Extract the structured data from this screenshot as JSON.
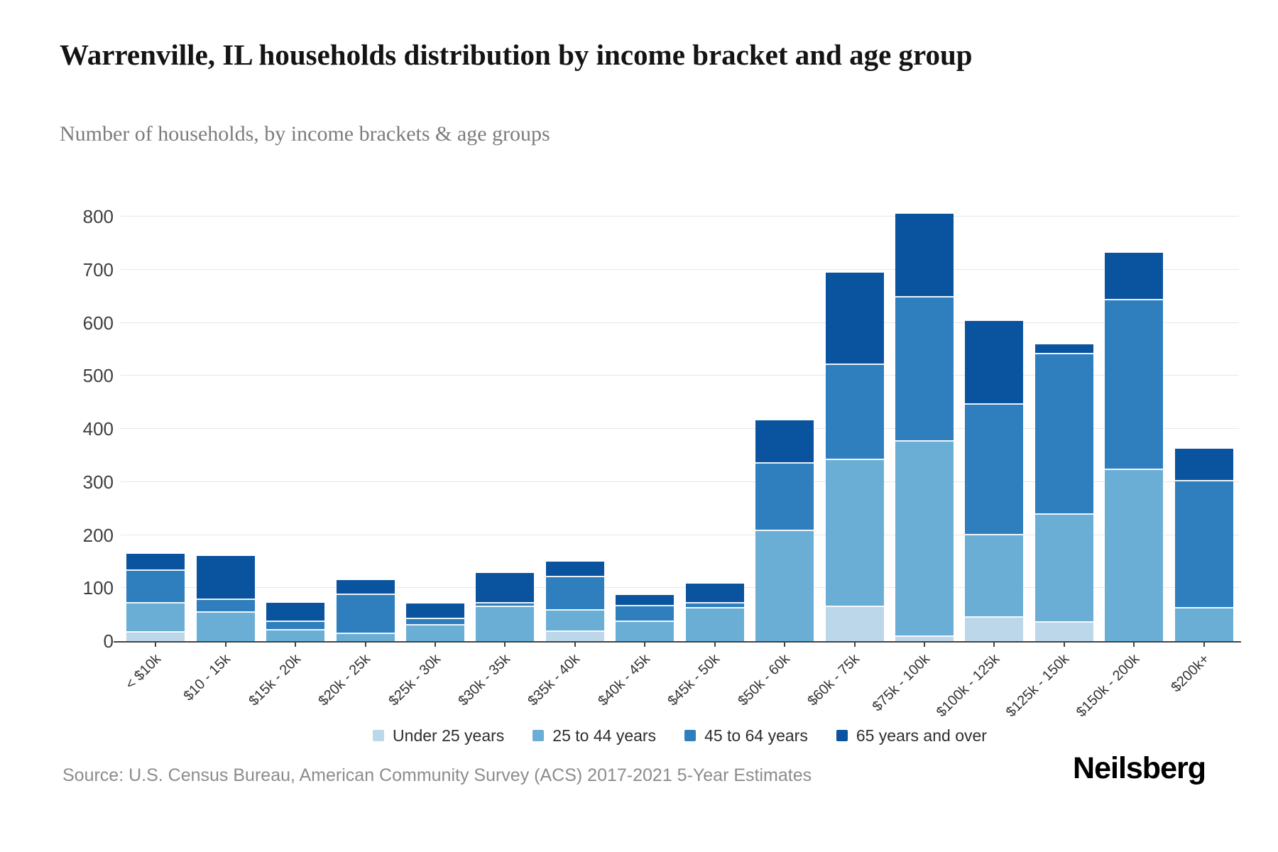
{
  "header": {
    "title": "Warrenville, IL households distribution by income bracket and age group",
    "subtitle": "Number of households, by income brackets & age groups"
  },
  "chart_data": {
    "type": "bar",
    "stacked": true,
    "title": "Warrenville, IL households distribution by income bracket and age group",
    "subtitle": "Number of households, by income brackets & age groups",
    "xlabel": "",
    "ylabel": "",
    "ylim": [
      0,
      800
    ],
    "yticks": [
      0,
      100,
      200,
      300,
      400,
      500,
      600,
      700,
      800
    ],
    "grid": "horizontal",
    "legend_position": "bottom",
    "categories": [
      "< $10k",
      "$10 - 15k",
      "$15k - 20k",
      "$20k - 25k",
      "$25k - 30k",
      "$30k - 35k",
      "$35k - 40k",
      "$40k - 45k",
      "$45k - 50k",
      "$50k - 60k",
      "$60k - 75k",
      "$75k - 100k",
      "$100k - 125k",
      "$125k - 150k",
      "$150k - 200k",
      "$200k+"
    ],
    "series": [
      {
        "name": "Under 25 years",
        "color": "#bdd7ea",
        "values": [
          16,
          0,
          0,
          0,
          0,
          0,
          18,
          0,
          0,
          0,
          64,
          8,
          44,
          35,
          0,
          0
        ]
      },
      {
        "name": "25 to 44 years",
        "color": "#6aaed6",
        "values": [
          55,
          54,
          20,
          13,
          30,
          64,
          40,
          36,
          61,
          207,
          277,
          368,
          156,
          203,
          322,
          62
        ]
      },
      {
        "name": "45 to 64 years",
        "color": "#2f7ebd",
        "values": [
          62,
          24,
          16,
          74,
          12,
          7,
          62,
          30,
          10,
          128,
          179,
          272,
          245,
          303,
          320,
          239
        ]
      },
      {
        "name": "65 years and over",
        "color": "#0a539e",
        "values": [
          32,
          82,
          36,
          28,
          29,
          58,
          30,
          21,
          37,
          81,
          175,
          157,
          159,
          18,
          90,
          62
        ]
      }
    ],
    "bar_totals": [
      165,
      160,
      72,
      115,
      71,
      129,
      150,
      87,
      108,
      416,
      695,
      805,
      604,
      559,
      732,
      363
    ]
  },
  "footer": {
    "source": "Source: U.S. Census Bureau, American Community Survey (ACS) 2017-2021 5-Year Estimates",
    "brand": "Neilsberg"
  }
}
